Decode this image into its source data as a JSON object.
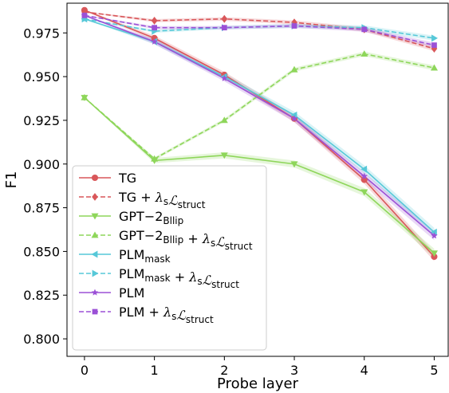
{
  "chart_data": {
    "type": "line",
    "xlabel": "Probe layer",
    "ylabel": "F1",
    "x": [
      0,
      1,
      2,
      3,
      4,
      5
    ],
    "xlim": [
      -0.25,
      5.2
    ],
    "ylim": [
      0.79,
      0.992
    ],
    "xticks": [
      "0",
      "1",
      "2",
      "3",
      "4",
      "5"
    ],
    "yticks": [
      "0.800",
      "0.825",
      "0.850",
      "0.875",
      "0.900",
      "0.925",
      "0.950",
      "0.975"
    ],
    "grid": false,
    "legend_position": "lower-left",
    "series": [
      {
        "name": "TG",
        "name_parts": [
          {
            "t": "TG",
            "s": "n"
          }
        ],
        "color": "#d9575a",
        "dash": false,
        "marker": "circle",
        "values": [
          0.988,
          0.972,
          0.951,
          0.926,
          0.891,
          0.847
        ]
      },
      {
        "name": "TG + λsℒstruct",
        "name_parts": [
          {
            "t": "TG + ",
            "s": "n"
          },
          {
            "t": "λ",
            "s": "i"
          },
          {
            "t": "s",
            "s": "sub"
          },
          {
            "t": "ℒ",
            "s": "i"
          },
          {
            "t": "struct",
            "s": "sub"
          }
        ],
        "color": "#d9575a",
        "dash": true,
        "marker": "diamond",
        "values": [
          0.987,
          0.982,
          0.983,
          0.981,
          0.977,
          0.966
        ]
      },
      {
        "name": "GPT−2Bllip",
        "name_parts": [
          {
            "t": "GPT−2",
            "s": "n"
          },
          {
            "t": "Bllip",
            "s": "sub"
          }
        ],
        "color": "#8ed65a",
        "dash": false,
        "marker": "triangle-down",
        "values": [
          0.938,
          0.902,
          0.905,
          0.9,
          0.884,
          0.849
        ]
      },
      {
        "name": "GPT−2Bllip + λsℒstruct",
        "name_parts": [
          {
            "t": "GPT−2",
            "s": "n"
          },
          {
            "t": "Bllip",
            "s": "sub"
          },
          {
            "t": " + ",
            "s": "n"
          },
          {
            "t": "λ",
            "s": "i"
          },
          {
            "t": "s",
            "s": "sub"
          },
          {
            "t": "ℒ",
            "s": "i"
          },
          {
            "t": "struct",
            "s": "sub"
          }
        ],
        "color": "#8ed65a",
        "dash": true,
        "marker": "triangle-up",
        "values": [
          0.938,
          0.903,
          0.925,
          0.954,
          0.963,
          0.955
        ]
      },
      {
        "name": "PLMmask",
        "name_parts": [
          {
            "t": "PLM",
            "s": "n"
          },
          {
            "t": "mask",
            "s": "sub"
          }
        ],
        "color": "#56c8d8",
        "dash": false,
        "marker": "triangle-left",
        "values": [
          0.983,
          0.97,
          0.95,
          0.928,
          0.897,
          0.861
        ]
      },
      {
        "name": "PLMmask + λsℒstruct",
        "name_parts": [
          {
            "t": "PLM",
            "s": "n"
          },
          {
            "t": "mask",
            "s": "sub"
          },
          {
            "t": " + ",
            "s": "n"
          },
          {
            "t": "λ",
            "s": "i"
          },
          {
            "t": "s",
            "s": "sub"
          },
          {
            "t": "ℒ",
            "s": "i"
          },
          {
            "t": "struct",
            "s": "sub"
          }
        ],
        "color": "#56c8d8",
        "dash": true,
        "marker": "triangle-right",
        "values": [
          0.983,
          0.976,
          0.978,
          0.979,
          0.978,
          0.972
        ]
      },
      {
        "name": "PLM",
        "name_parts": [
          {
            "t": "PLM",
            "s": "n"
          }
        ],
        "color": "#9b50d6",
        "dash": false,
        "marker": "star",
        "values": [
          0.985,
          0.97,
          0.949,
          0.926,
          0.893,
          0.859
        ]
      },
      {
        "name": "PLM + λsℒstruct",
        "name_parts": [
          {
            "t": "PLM + ",
            "s": "n"
          },
          {
            "t": "λ",
            "s": "i"
          },
          {
            "t": "s",
            "s": "sub"
          },
          {
            "t": "ℒ",
            "s": "i"
          },
          {
            "t": "struct",
            "s": "sub"
          }
        ],
        "color": "#9b50d6",
        "dash": true,
        "marker": "square",
        "values": [
          0.985,
          0.978,
          0.978,
          0.979,
          0.977,
          0.968
        ]
      }
    ]
  }
}
